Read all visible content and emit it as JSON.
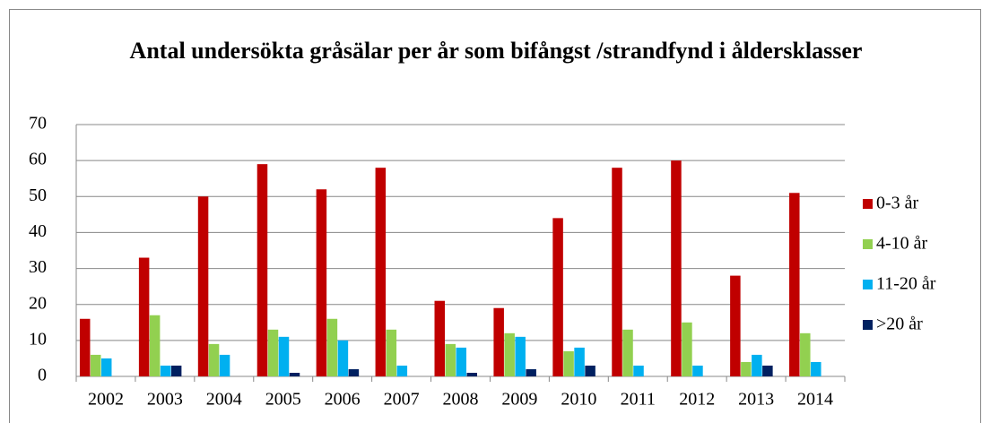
{
  "chart_data": {
    "type": "bar",
    "title": "Antal undersökta gråsälar per år som bifångst /strandfynd i åldersklasser",
    "categories": [
      "2002",
      "2003",
      "2004",
      "2005",
      "2006",
      "2007",
      "2008",
      "2009",
      "2010",
      "2011",
      "2012",
      "2013",
      "2014"
    ],
    "series": [
      {
        "name": "0-3 år",
        "color": "#c00000",
        "values": [
          16,
          33,
          50,
          59,
          52,
          58,
          21,
          19,
          44,
          58,
          60,
          28,
          51
        ]
      },
      {
        "name": "4-10 år",
        "color": "#92d050",
        "values": [
          6,
          17,
          9,
          13,
          16,
          13,
          9,
          12,
          7,
          13,
          15,
          4,
          12
        ]
      },
      {
        "name": "11-20 år",
        "color": "#00b0f0",
        "values": [
          5,
          3,
          6,
          11,
          10,
          3,
          8,
          11,
          8,
          3,
          3,
          6,
          4
        ]
      },
      {
        "name": ">20 år",
        "color": "#002060",
        "values": [
          0,
          3,
          0,
          1,
          2,
          0,
          1,
          2,
          3,
          0,
          0,
          3,
          0
        ]
      }
    ],
    "ylim": [
      0,
      70
    ],
    "yticks": [
      0,
      10,
      20,
      30,
      40,
      50,
      60,
      70
    ],
    "grid": true,
    "legend": "right"
  }
}
